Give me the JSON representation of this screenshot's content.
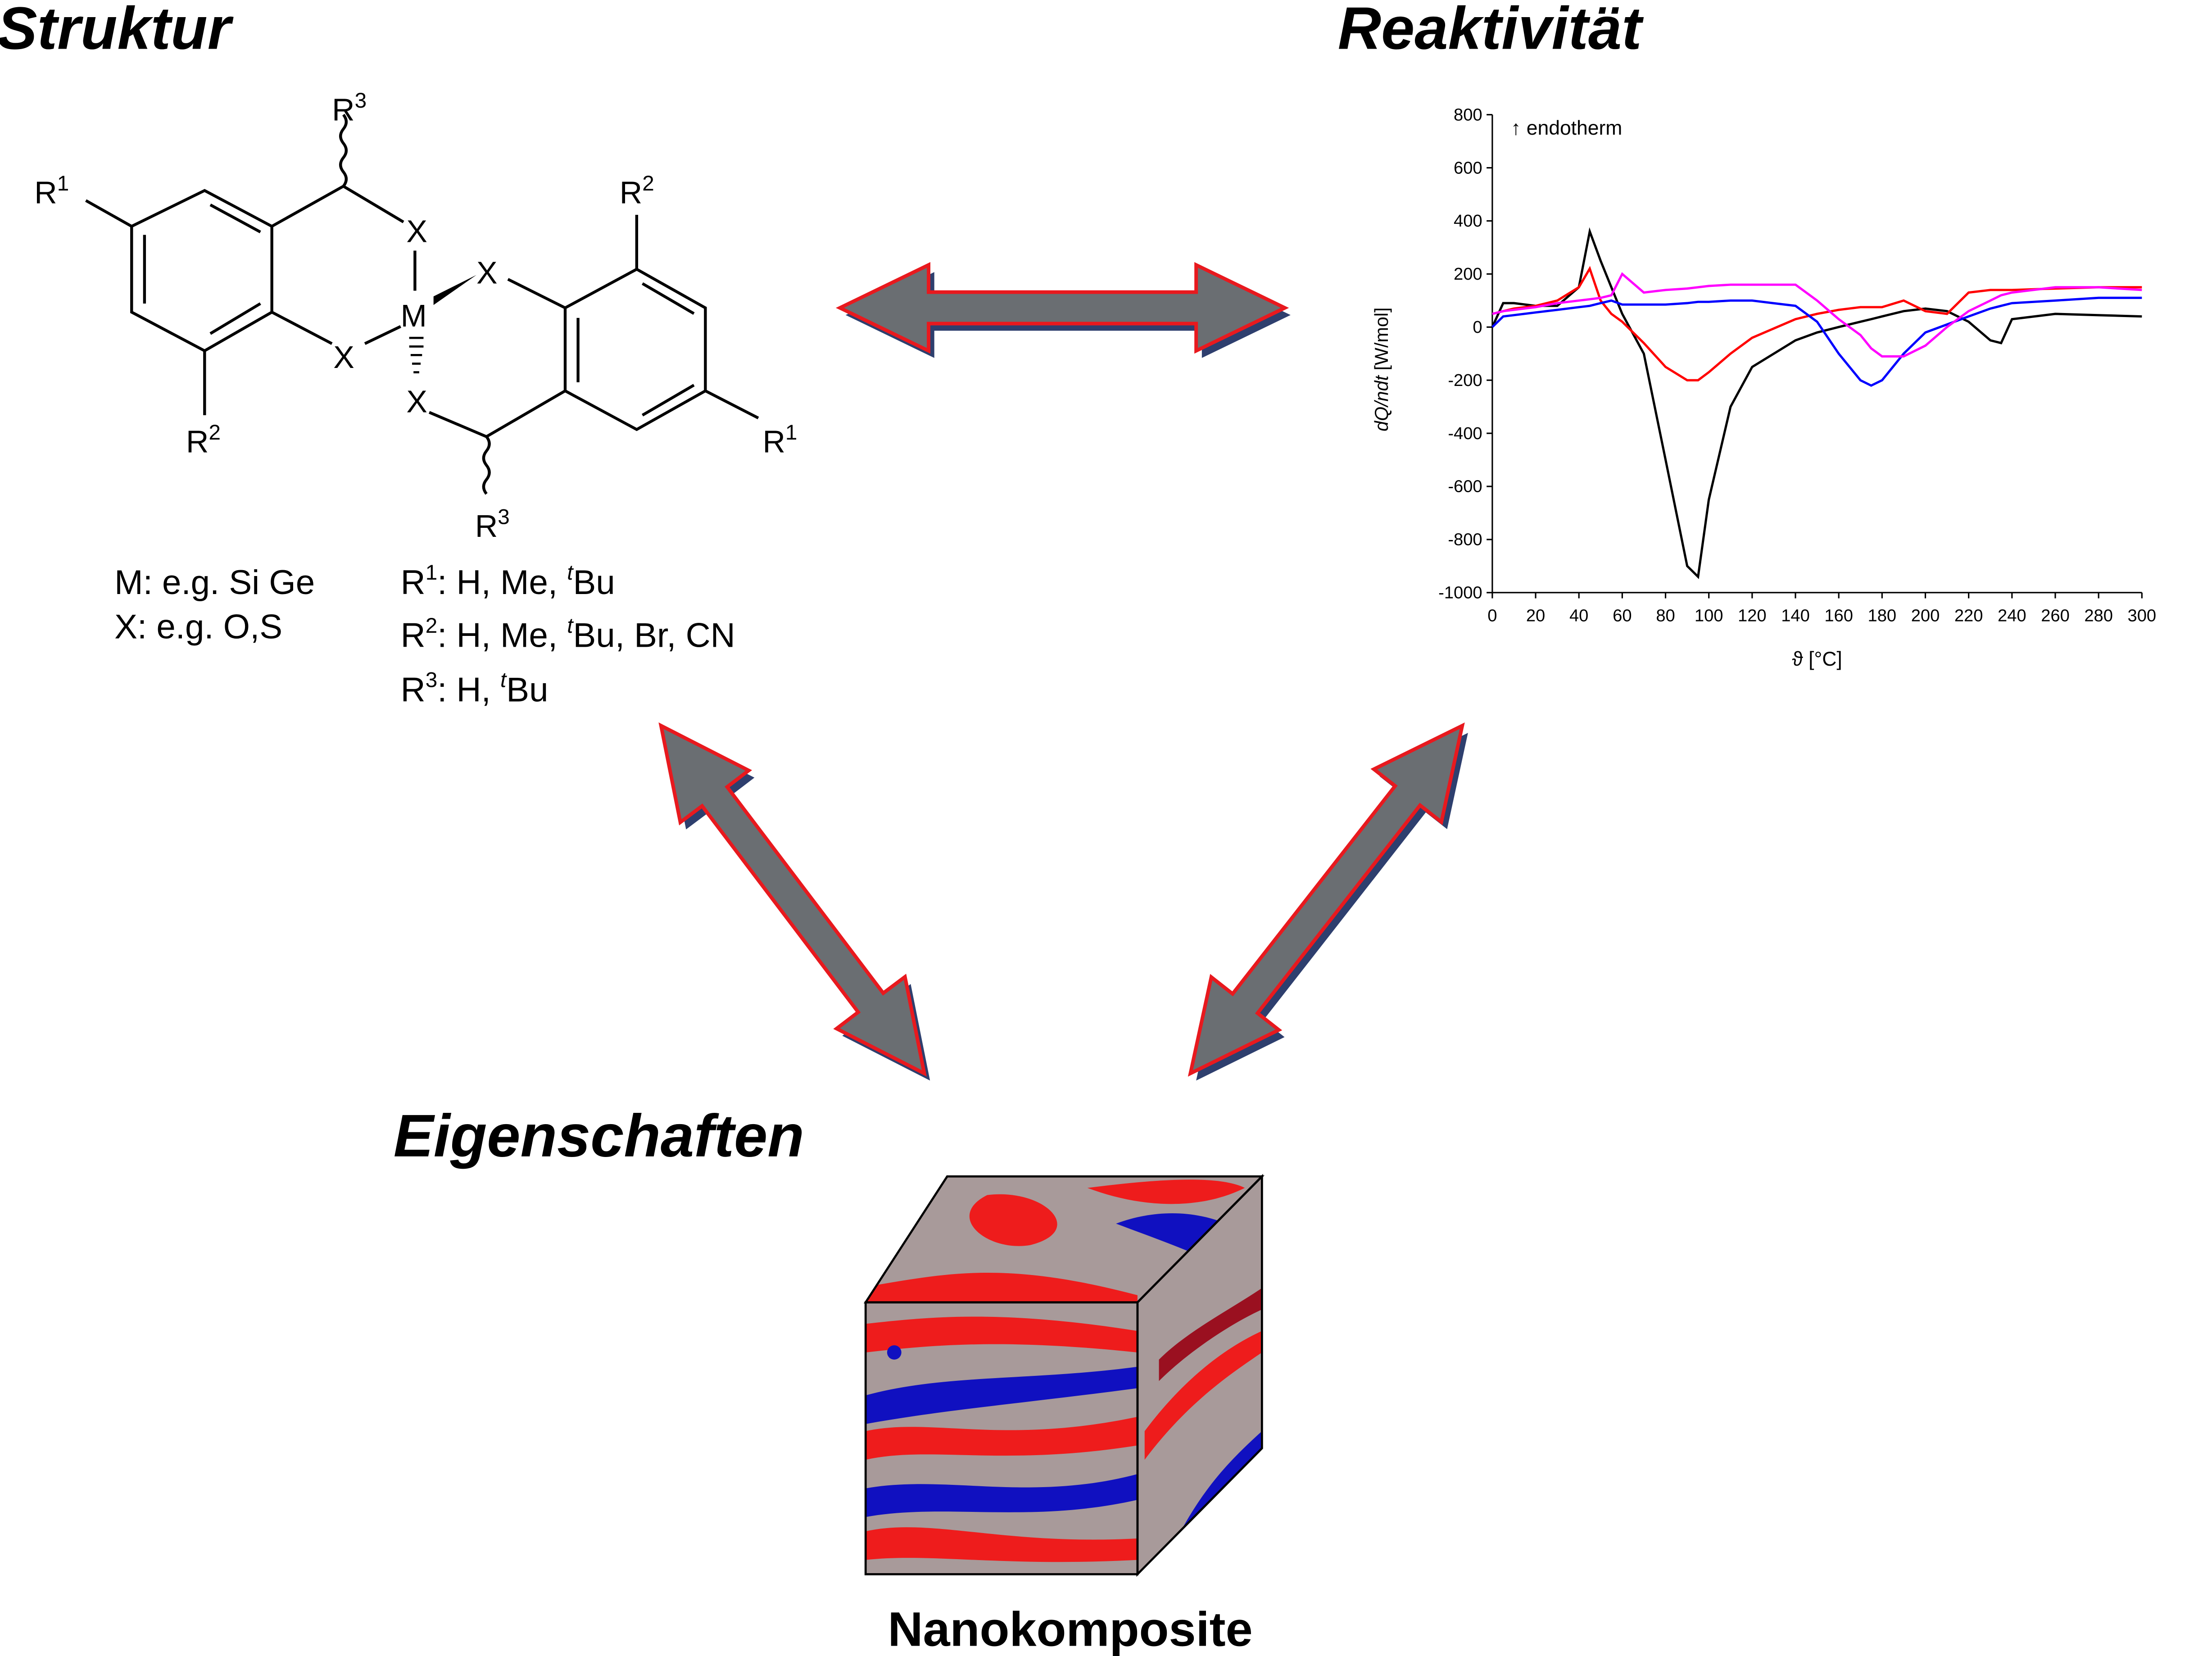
{
  "headings": {
    "structure": "Struktur",
    "reactivity": "Reaktivität",
    "properties": "Eigenschaften",
    "material": "Nanokomposite"
  },
  "molecule": {
    "r1_left": {
      "base": "R",
      "sup": "1"
    },
    "r2_left": {
      "base": "R",
      "sup": "2"
    },
    "r3_top": {
      "base": "R",
      "sup": "3"
    },
    "r2_right": {
      "base": "R",
      "sup": "2"
    },
    "r1_right": {
      "base": "R",
      "sup": "1"
    },
    "r3_bottom": {
      "base": "R",
      "sup": "3"
    },
    "x_top": "X",
    "x_left": "X",
    "x_right": "X",
    "x_bottom": "X",
    "metal": "M"
  },
  "legend": {
    "m_line": "M: e.g. Si Ge",
    "x_line": "X: e.g. O,S",
    "r1_line": [
      "R",
      "1",
      ": H, Me, ",
      "t",
      "Bu"
    ],
    "r2_line": [
      "R",
      "2",
      ": H, Me, ",
      "t",
      "Bu",
      ", Br, CN"
    ],
    "r3_line": [
      "R",
      "3",
      ": H, ",
      "t",
      "Bu"
    ]
  },
  "chart_data": {
    "type": "line",
    "annotation": "↑ endotherm",
    "y_label": [
      "dQ/ndt",
      " [W/mol]"
    ],
    "x_label": "ϑ [°C]",
    "xlim": [
      0,
      300
    ],
    "ylim": [
      -1000,
      800
    ],
    "xticks": [
      0,
      20,
      40,
      60,
      80,
      100,
      120,
      140,
      160,
      180,
      200,
      220,
      240,
      260,
      280,
      300
    ],
    "yticks": [
      -1000,
      -800,
      -600,
      -400,
      -200,
      0,
      200,
      400,
      600,
      800
    ],
    "x": [
      0,
      5,
      10,
      20,
      30,
      40,
      45,
      50,
      55,
      60,
      70,
      80,
      90,
      95,
      100,
      110,
      120,
      140,
      150,
      160,
      170,
      175,
      180,
      190,
      200,
      210,
      220,
      230,
      235,
      240,
      260,
      280,
      300
    ],
    "series": [
      {
        "color": "#000000",
        "values": [
          0,
          90,
          90,
          80,
          80,
          150,
          360,
          250,
          150,
          50,
          -100,
          -500,
          -900,
          -940,
          -650,
          -300,
          -150,
          -50,
          -20,
          0,
          20,
          30,
          40,
          60,
          70,
          60,
          20,
          -50,
          -60,
          30,
          50,
          45,
          40
        ]
      },
      {
        "color": "#ff0000",
        "values": [
          50,
          60,
          70,
          80,
          100,
          150,
          220,
          100,
          50,
          20,
          -60,
          -150,
          -200,
          -200,
          -170,
          -100,
          -40,
          30,
          50,
          65,
          75,
          75,
          75,
          100,
          60,
          50,
          130,
          140,
          140,
          140,
          145,
          150,
          150
        ]
      },
      {
        "color": "#0000ff",
        "values": [
          0,
          40,
          45,
          55,
          65,
          75,
          80,
          90,
          100,
          85,
          85,
          85,
          90,
          95,
          95,
          100,
          100,
          80,
          20,
          -100,
          -200,
          -220,
          -200,
          -100,
          -20,
          10,
          40,
          70,
          80,
          90,
          100,
          110,
          110
        ]
      },
      {
        "color": "#ff00ff",
        "values": [
          50,
          60,
          65,
          75,
          90,
          100,
          105,
          110,
          120,
          200,
          130,
          140,
          145,
          150,
          155,
          160,
          160,
          160,
          100,
          30,
          -30,
          -80,
          -110,
          -110,
          -70,
          0,
          60,
          100,
          120,
          130,
          150,
          150,
          140
        ]
      }
    ]
  }
}
